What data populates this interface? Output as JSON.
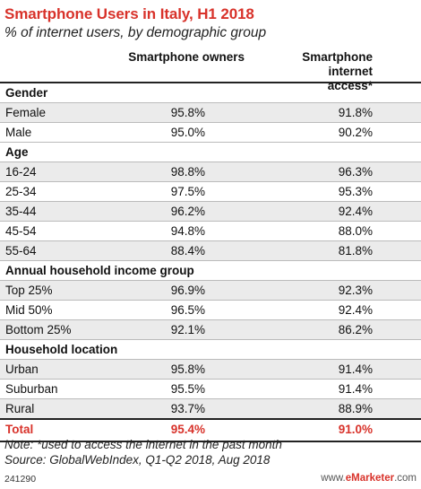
{
  "title": "Smartphone Users in Italy, H1 2018",
  "subtitle": "% of internet users, by demographic group",
  "columns": {
    "col1": "Smartphone owners",
    "col2_line1": "Smartphone internet",
    "col2_line2": "access*"
  },
  "colors": {
    "accent": "#d8322a",
    "shade": "#ebebeb"
  },
  "chart_data": {
    "type": "table",
    "title": "Smartphone Users in Italy, H1 2018",
    "subtitle": "% of internet users, by demographic group",
    "columns": [
      "Smartphone owners",
      "Smartphone internet access*"
    ],
    "sections": [
      {
        "name": "Gender",
        "rows": [
          {
            "label": "Female",
            "values": [
              "95.8%",
              "91.8%"
            ]
          },
          {
            "label": "Male",
            "values": [
              "95.0%",
              "90.2%"
            ]
          }
        ]
      },
      {
        "name": "Age",
        "rows": [
          {
            "label": "16-24",
            "values": [
              "98.8%",
              "96.3%"
            ]
          },
          {
            "label": "25-34",
            "values": [
              "97.5%",
              "95.3%"
            ]
          },
          {
            "label": "35-44",
            "values": [
              "96.2%",
              "92.4%"
            ]
          },
          {
            "label": "45-54",
            "values": [
              "94.8%",
              "88.0%"
            ]
          },
          {
            "label": "55-64",
            "values": [
              "88.4%",
              "81.8%"
            ]
          }
        ]
      },
      {
        "name": "Annual household income group",
        "rows": [
          {
            "label": "Top 25%",
            "values": [
              "96.9%",
              "92.3%"
            ]
          },
          {
            "label": "Mid 50%",
            "values": [
              "96.5%",
              "92.4%"
            ]
          },
          {
            "label": "Bottom 25%",
            "values": [
              "92.1%",
              "86.2%"
            ]
          }
        ]
      },
      {
        "name": "Household location",
        "rows": [
          {
            "label": "Urban",
            "values": [
              "95.8%",
              "91.4%"
            ]
          },
          {
            "label": "Suburban",
            "values": [
              "95.5%",
              "91.4%"
            ]
          },
          {
            "label": "Rural",
            "values": [
              "93.7%",
              "88.9%"
            ]
          }
        ]
      }
    ],
    "total": {
      "label": "Total",
      "values": [
        "95.4%",
        "91.0%"
      ]
    }
  },
  "note": "Note: *used to access the internet in the past month",
  "source": "Source: GlobalWebIndex, Q1-Q2 2018, Aug 2018",
  "footer_id": "241290",
  "brand": {
    "prefix": "www.",
    "name": "eMarketer",
    "suffix": ".com"
  }
}
